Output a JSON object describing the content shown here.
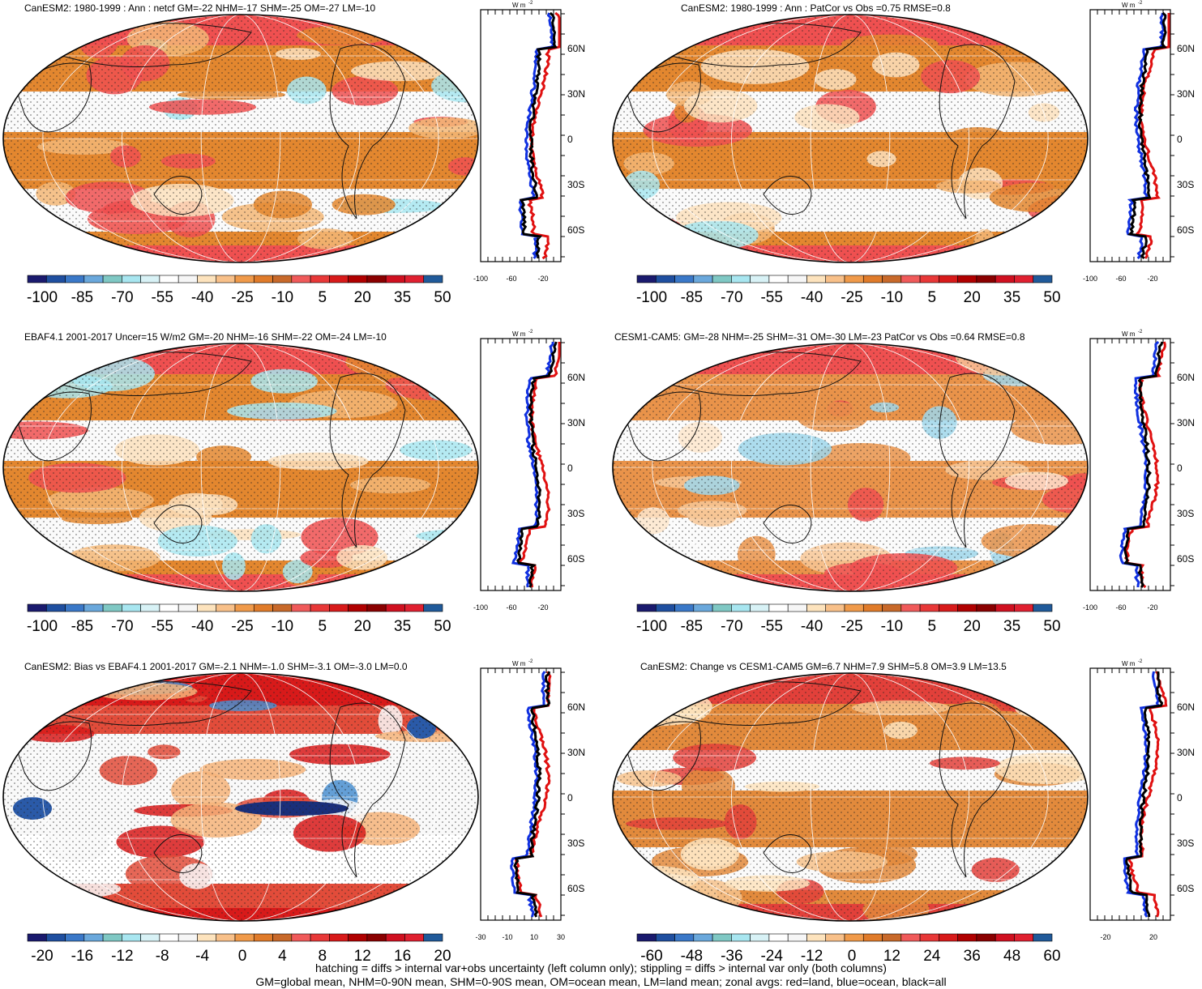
{
  "panels": [
    {
      "title": "CanESM2: 1980-1999 : Ann : netcf GM=-22 NHM=-17 SHM=-25 OM=-27 LM=-10",
      "colorbar_labels": [
        "-100",
        "-85",
        "-70",
        "-55",
        "-40",
        "-25",
        "-10",
        "5",
        "20",
        "35",
        "50"
      ],
      "zonal_ticks": [
        "-100",
        "-60",
        "-20"
      ],
      "scheme": "warm"
    },
    {
      "title": "CanESM2: 1980-1999 : Ann : PatCor vs Obs =0.75 RMSE=0.8",
      "colorbar_labels": [
        "-100",
        "-85",
        "-70",
        "-55",
        "-40",
        "-25",
        "-10",
        "5",
        "20",
        "35",
        "50"
      ],
      "zonal_ticks": [
        "-100",
        "-60",
        "-20"
      ],
      "scheme": "warm"
    },
    {
      "title": "EBAF4.1 2001-2017 Uncer=15 W/m2 GM=-20 NHM=-16 SHM=-22 OM=-24 LM=-10",
      "colorbar_labels": [
        "-100",
        "-85",
        "-70",
        "-55",
        "-40",
        "-25",
        "-10",
        "5",
        "20",
        "35",
        "50"
      ],
      "zonal_ticks": [
        "-100",
        "-60",
        "-20"
      ],
      "scheme": "warm"
    },
    {
      "title": "CESM1-CAM5: GM=-28 NHM=-25 SHM=-31 OM=-30 LM=-23 PatCor vs Obs =0.64 RMSE=0.8",
      "colorbar_labels": [
        "-100",
        "-85",
        "-70",
        "-55",
        "-40",
        "-25",
        "-10",
        "5",
        "20",
        "35",
        "50"
      ],
      "zonal_ticks": [
        "-100",
        "-60",
        "-20"
      ],
      "scheme": "pale"
    },
    {
      "title": "CanESM2: Bias vs EBAF4.1 2001-2017 GM=-2.1 NHM=-1.0 SHM=-3.1 OM=-3.0 LM=0.0",
      "colorbar_labels": [
        "-20",
        "-16",
        "-12",
        "-8",
        "-4",
        "0",
        "4",
        "8",
        "12",
        "16",
        "20"
      ],
      "zonal_ticks": [
        "-30",
        "-10",
        "10",
        "30"
      ],
      "scheme": "bias"
    },
    {
      "title": "CanESM2: Change vs CESM1-CAM5 GM=6.7 NHM=7.9 SHM=5.8 OM=3.9 LM=13.5",
      "colorbar_labels": [
        "-60",
        "-48",
        "-36",
        "-24",
        "-12",
        "0",
        "12",
        "24",
        "36",
        "48",
        "60"
      ],
      "zonal_ticks": [
        "-20",
        "20"
      ],
      "scheme": "change"
    }
  ],
  "zonal_unit": "W m",
  "zonal_unit_sup": "-2",
  "lat_labels": [
    "60N",
    "30N",
    "0",
    "30S",
    "60S"
  ],
  "palette": [
    "#1a1a6e",
    "#1f4fa0",
    "#3a78c8",
    "#6aa8dc",
    "#7fc8c4",
    "#a8e6f0",
    "#d8f2f6",
    "#ffffff",
    "#f6f6f6",
    "#fde3bd",
    "#f8c089",
    "#f09a4a",
    "#e07b2a",
    "#c8692a",
    "#f05a5a",
    "#e83838",
    "#d81a1a",
    "#b00000",
    "#8a0000",
    "#d01020",
    "#e02030",
    "#205a9a"
  ],
  "footer": [
    "hatching = diffs > internal var+obs uncertainty (left column only); stippling = diffs > internal var only (both columns)",
    "GM=global mean, NHM=0-90N mean, SHM=0-90S mean, OM=ocean mean, LM=land mean; zonal avgs: red=land, blue=ocean, black=all"
  ]
}
